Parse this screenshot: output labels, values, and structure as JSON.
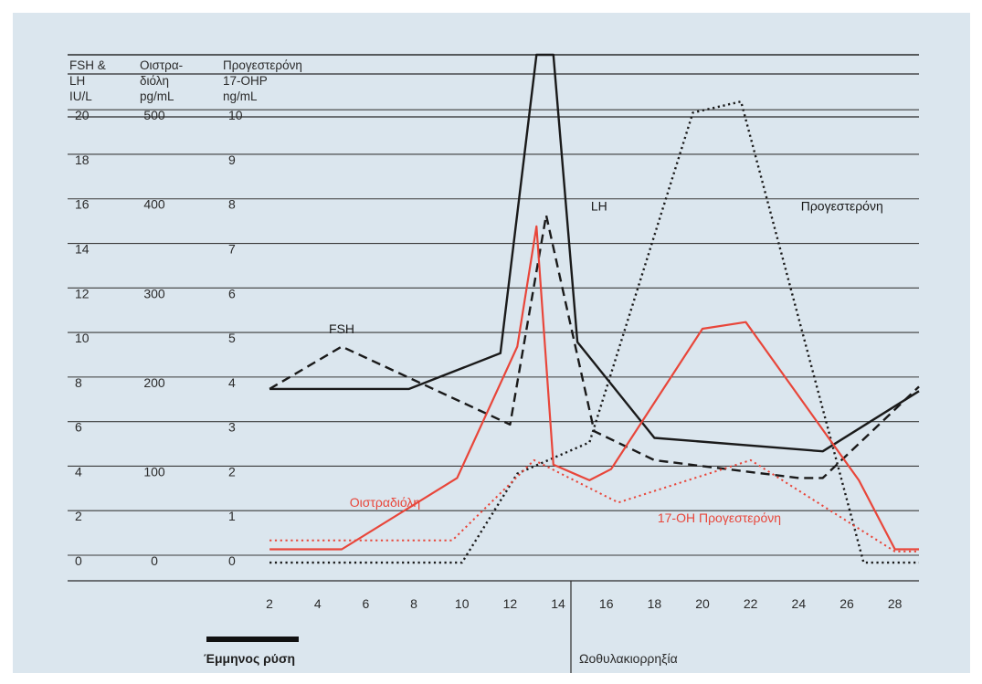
{
  "chart_data": {
    "type": "line",
    "column_headers": [
      [
        "FSH &",
        "LH",
        "IU/L"
      ],
      [
        "Οιστρα-",
        "διόλη",
        "pg/mL"
      ],
      [
        "Προγεστερόνη",
        "17-OHP",
        "ng/mL"
      ]
    ],
    "y_ticks": {
      "fsh_lh": [
        "20",
        "18",
        "16",
        "14",
        "12",
        "10",
        "8",
        "6",
        "4",
        "2",
        "0"
      ],
      "oistradioli": [
        "500",
        "",
        "400",
        "",
        "300",
        "",
        "200",
        "",
        "100",
        "",
        "0"
      ],
      "progesterone": [
        "10",
        "9",
        "8",
        "7",
        "6",
        "5",
        "4",
        "3",
        "2",
        "1",
        "0"
      ]
    },
    "ylim": [
      0,
      23
    ],
    "xlim": [
      1.2,
      29
    ],
    "x_ticks": [
      "2",
      "4",
      "6",
      "8",
      "10",
      "12",
      "14",
      "16",
      "18",
      "20",
      "22",
      "24",
      "26",
      "28"
    ],
    "x_tick_values": [
      2,
      4,
      6,
      8,
      10,
      12,
      14,
      16,
      18,
      20,
      22,
      24,
      26,
      28
    ],
    "series": [
      {
        "name": "LH",
        "color": "#1a1a1a",
        "style": "solid",
        "width": 2.4,
        "x": [
          2,
          7.8,
          11.6,
          13.1,
          13.8,
          14.8,
          18,
          25,
          29
        ],
        "y": [
          8,
          8,
          9.6,
          23,
          23,
          10.1,
          5.8,
          5.2,
          7.9
        ]
      },
      {
        "name": "FSH",
        "color": "#1a1a1a",
        "style": "dashed",
        "width": 2.4,
        "x": [
          2,
          5,
          12,
          13.5,
          15.5,
          18,
          24,
          25,
          29
        ],
        "y": [
          8,
          9.9,
          6.4,
          15.8,
          6.1,
          4.8,
          4,
          4,
          8.1
        ]
      },
      {
        "name": "Προγεστερόνη",
        "color": "#1a1a1a",
        "style": "dotted",
        "width": 2.4,
        "x": [
          2,
          10,
          12.3,
          15.3,
          19.6,
          21.6,
          26.7,
          29
        ],
        "y": [
          0.2,
          0.2,
          4.2,
          5.6,
          20.4,
          20.9,
          0.2,
          0.2
        ]
      },
      {
        "name": "Οιστραδιόλη",
        "color": "#e8463a",
        "style": "solid",
        "width": 2.2,
        "x": [
          2,
          5,
          9.8,
          12.3,
          13.1,
          13.8,
          15.3,
          16.2,
          20,
          21.8,
          26.5,
          28,
          29
        ],
        "y": [
          0.8,
          0.8,
          4,
          9.9,
          15.3,
          4.6,
          3.9,
          4.4,
          10.7,
          11,
          3.9,
          0.8,
          0.8
        ]
      },
      {
        "name": "17-OH Προγεστερόνη",
        "color": "#e8463a",
        "style": "dotted",
        "width": 2,
        "x": [
          2,
          9.6,
          13,
          16.5,
          22,
          28,
          29
        ],
        "y": [
          1.2,
          1.2,
          4.8,
          2.9,
          4.8,
          0.7,
          0.7
        ]
      }
    ],
    "annotations": [
      {
        "text": "FSH",
        "x": 5,
        "y": 10.5,
        "color": "#1a1a1a",
        "anchor": "middle"
      },
      {
        "text": "LH",
        "x": 15.7,
        "y": 16,
        "color": "#1a1a1a",
        "anchor": "middle"
      },
      {
        "text": "Προγεστερόνη",
        "x": 25.8,
        "y": 16,
        "color": "#1a1a1a",
        "anchor": "middle"
      },
      {
        "text": "Οιστραδιόλη",
        "x": 6.8,
        "y": 2.7,
        "color": "#e8463a",
        "anchor": "middle"
      },
      {
        "text": "17-OH Προγεστερόνη",
        "x": 20.7,
        "y": 2.0,
        "color": "#e8463a",
        "anchor": "middle"
      }
    ],
    "bottom_labels": {
      "menses": "Έμμηνος ρύση",
      "ovulation": "Ωοθυλακιορρηξία"
    }
  }
}
